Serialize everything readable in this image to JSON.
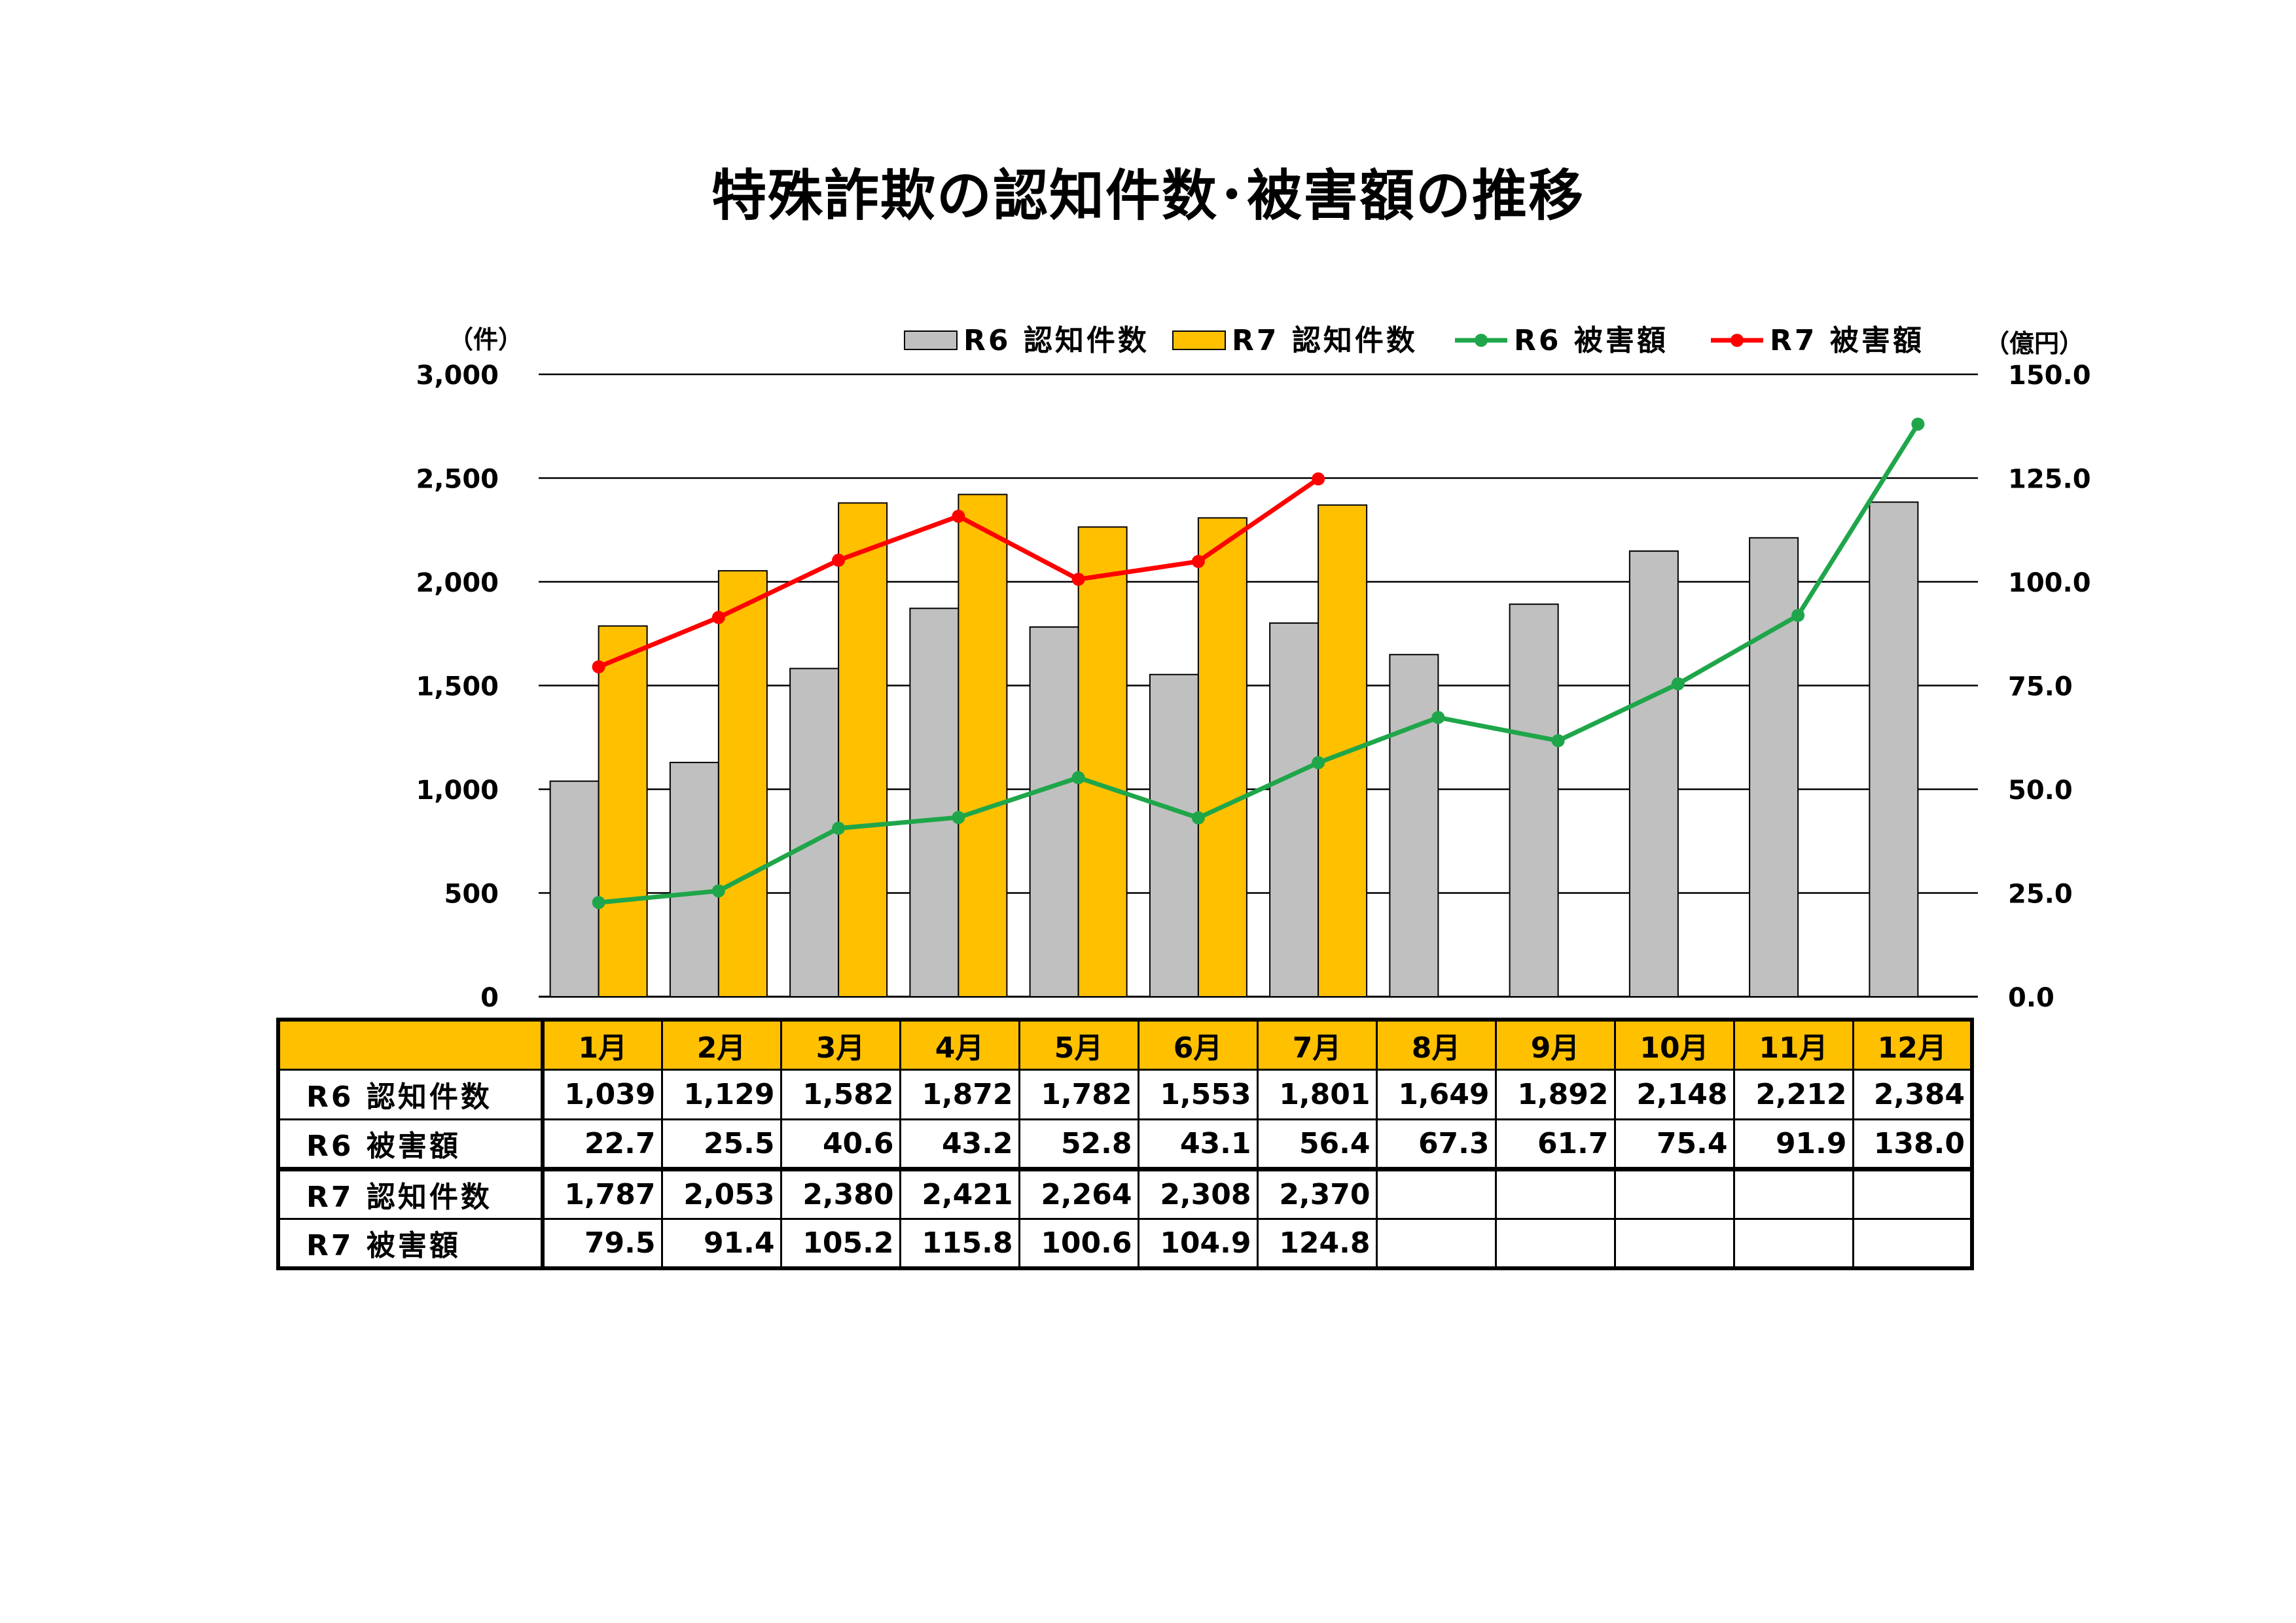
{
  "title": "特殊詐欺の認知件数･被害額の推移",
  "chart_data": {
    "type": "bar",
    "title": "特殊詐欺の認知件数･被害額の推移",
    "categories": [
      "1月",
      "2月",
      "3月",
      "4月",
      "5月",
      "6月",
      "7月",
      "8月",
      "9月",
      "10月",
      "11月",
      "12月"
    ],
    "y_left": {
      "unit": "（件）",
      "range": [
        0,
        3000
      ],
      "ticks": [
        "0",
        "500",
        "1,000",
        "1,500",
        "2,000",
        "2,500",
        "3,000"
      ]
    },
    "y_right": {
      "unit": "（億円）",
      "range": [
        0,
        150
      ],
      "ticks": [
        "0.0",
        "25.0",
        "50.0",
        "75.0",
        "100.0",
        "125.0",
        "150.0"
      ]
    },
    "grid": true,
    "legend_position": "top",
    "series": [
      {
        "name": "R6 認知件数",
        "kind": "bar",
        "axis": "left",
        "color": "#C0C0C0",
        "values": [
          1039,
          1129,
          1582,
          1872,
          1782,
          1553,
          1801,
          1649,
          1892,
          2148,
          2212,
          2384
        ]
      },
      {
        "name": "R7 認知件数",
        "kind": "bar",
        "axis": "left",
        "color": "#FFC000",
        "values": [
          1787,
          2053,
          2380,
          2421,
          2264,
          2308,
          2370,
          null,
          null,
          null,
          null,
          null
        ]
      },
      {
        "name": "R6 被害額",
        "kind": "line",
        "axis": "right",
        "color": "#1FA64A",
        "values": [
          22.7,
          25.5,
          40.6,
          43.2,
          52.8,
          43.1,
          56.4,
          67.3,
          61.7,
          75.4,
          91.9,
          138.0
        ]
      },
      {
        "name": "R7 被害額",
        "kind": "line",
        "axis": "right",
        "color": "#FF0000",
        "values": [
          79.5,
          91.4,
          105.2,
          115.8,
          100.6,
          104.9,
          124.8,
          null,
          null,
          null,
          null,
          null
        ]
      }
    ]
  },
  "table": {
    "months": [
      "1月",
      "2月",
      "3月",
      "4月",
      "5月",
      "6月",
      "7月",
      "8月",
      "9月",
      "10月",
      "11月",
      "12月"
    ],
    "rows": [
      {
        "label": "R6 認知件数",
        "cells": [
          "1,039",
          "1,129",
          "1,582",
          "1,872",
          "1,782",
          "1,553",
          "1,801",
          "1,649",
          "1,892",
          "2,148",
          "2,212",
          "2,384"
        ]
      },
      {
        "label": "R6 被害額",
        "cells": [
          "22.7",
          "25.5",
          "40.6",
          "43.2",
          "52.8",
          "43.1",
          "56.4",
          "67.3",
          "61.7",
          "75.4",
          "91.9",
          "138.0"
        ]
      },
      {
        "label": "R7 認知件数",
        "cells": [
          "1,787",
          "2,053",
          "2,380",
          "2,421",
          "2,264",
          "2,308",
          "2,370",
          "",
          "",
          "",
          "",
          ""
        ]
      },
      {
        "label": "R7 被害額",
        "cells": [
          "79.5",
          "91.4",
          "105.2",
          "115.8",
          "100.6",
          "104.9",
          "124.8",
          "",
          "",
          "",
          "",
          ""
        ]
      }
    ]
  }
}
